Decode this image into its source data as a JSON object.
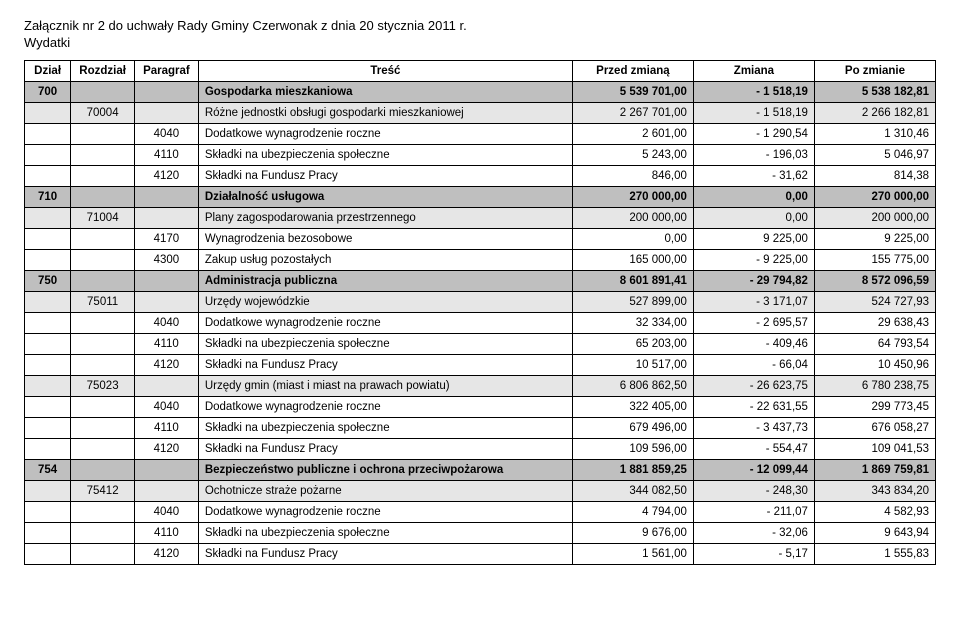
{
  "header": {
    "title": "Załącznik nr 2 do uchwały Rady Gminy Czerwonak z dnia 20 stycznia 2011 r.",
    "subtitle": "Wydatki"
  },
  "columns": {
    "dzial": "Dział",
    "rozdzial": "Rozdział",
    "paragraf": "Paragraf",
    "tresc": "Treść",
    "przed": "Przed zmianą",
    "zmiana": "Zmiana",
    "po": "Po zmianie"
  },
  "rows": [
    {
      "lvl": "dzial",
      "dzial": "700",
      "rozdz": "",
      "parag": "",
      "tresc": "Gospodarka mieszkaniowa",
      "p": "5 539 701,00",
      "z": "- 1 518,19",
      "po": "5 538 182,81"
    },
    {
      "lvl": "rozdz",
      "dzial": "",
      "rozdz": "70004",
      "parag": "",
      "tresc": "Różne jednostki obsługi gospodarki mieszkaniowej",
      "p": "2 267 701,00",
      "z": "- 1 518,19",
      "po": "2 266 182,81"
    },
    {
      "lvl": "parag",
      "dzial": "",
      "rozdz": "",
      "parag": "4040",
      "tresc": "Dodatkowe wynagrodzenie roczne",
      "p": "2 601,00",
      "z": "- 1 290,54",
      "po": "1 310,46"
    },
    {
      "lvl": "parag",
      "dzial": "",
      "rozdz": "",
      "parag": "4110",
      "tresc": "Składki na ubezpieczenia społeczne",
      "p": "5 243,00",
      "z": "- 196,03",
      "po": "5 046,97"
    },
    {
      "lvl": "parag",
      "dzial": "",
      "rozdz": "",
      "parag": "4120",
      "tresc": "Składki na Fundusz Pracy",
      "p": "846,00",
      "z": "- 31,62",
      "po": "814,38"
    },
    {
      "lvl": "dzial",
      "dzial": "710",
      "rozdz": "",
      "parag": "",
      "tresc": "Działalność usługowa",
      "p": "270 000,00",
      "z": "0,00",
      "po": "270 000,00"
    },
    {
      "lvl": "rozdz",
      "dzial": "",
      "rozdz": "71004",
      "parag": "",
      "tresc": "Plany zagospodarowania przestrzennego",
      "p": "200 000,00",
      "z": "0,00",
      "po": "200 000,00"
    },
    {
      "lvl": "parag",
      "dzial": "",
      "rozdz": "",
      "parag": "4170",
      "tresc": "Wynagrodzenia bezosobowe",
      "p": "0,00",
      "z": "9 225,00",
      "po": "9 225,00"
    },
    {
      "lvl": "parag",
      "dzial": "",
      "rozdz": "",
      "parag": "4300",
      "tresc": "Zakup usług pozostałych",
      "p": "165 000,00",
      "z": "- 9 225,00",
      "po": "155 775,00"
    },
    {
      "lvl": "dzial",
      "dzial": "750",
      "rozdz": "",
      "parag": "",
      "tresc": "Administracja publiczna",
      "p": "8 601 891,41",
      "z": "- 29 794,82",
      "po": "8 572 096,59"
    },
    {
      "lvl": "rozdz",
      "dzial": "",
      "rozdz": "75011",
      "parag": "",
      "tresc": "Urzędy wojewódzkie",
      "p": "527 899,00",
      "z": "- 3 171,07",
      "po": "524 727,93"
    },
    {
      "lvl": "parag",
      "dzial": "",
      "rozdz": "",
      "parag": "4040",
      "tresc": "Dodatkowe wynagrodzenie roczne",
      "p": "32 334,00",
      "z": "- 2 695,57",
      "po": "29 638,43"
    },
    {
      "lvl": "parag",
      "dzial": "",
      "rozdz": "",
      "parag": "4110",
      "tresc": "Składki na ubezpieczenia społeczne",
      "p": "65 203,00",
      "z": "- 409,46",
      "po": "64 793,54"
    },
    {
      "lvl": "parag",
      "dzial": "",
      "rozdz": "",
      "parag": "4120",
      "tresc": "Składki na Fundusz Pracy",
      "p": "10 517,00",
      "z": "- 66,04",
      "po": "10 450,96"
    },
    {
      "lvl": "rozdz",
      "dzial": "",
      "rozdz": "75023",
      "parag": "",
      "tresc": "Urzędy gmin (miast i miast na prawach powiatu)",
      "p": "6 806 862,50",
      "z": "- 26 623,75",
      "po": "6 780 238,75"
    },
    {
      "lvl": "parag",
      "dzial": "",
      "rozdz": "",
      "parag": "4040",
      "tresc": "Dodatkowe wynagrodzenie roczne",
      "p": "322 405,00",
      "z": "- 22 631,55",
      "po": "299 773,45"
    },
    {
      "lvl": "parag",
      "dzial": "",
      "rozdz": "",
      "parag": "4110",
      "tresc": "Składki na ubezpieczenia społeczne",
      "p": "679 496,00",
      "z": "- 3 437,73",
      "po": "676 058,27"
    },
    {
      "lvl": "parag",
      "dzial": "",
      "rozdz": "",
      "parag": "4120",
      "tresc": "Składki na Fundusz Pracy",
      "p": "109 596,00",
      "z": "- 554,47",
      "po": "109 041,53"
    },
    {
      "lvl": "dzial",
      "dzial": "754",
      "rozdz": "",
      "parag": "",
      "tresc": "Bezpieczeństwo publiczne i ochrona przeciwpożarowa",
      "p": "1 881 859,25",
      "z": "- 12 099,44",
      "po": "1 869 759,81"
    },
    {
      "lvl": "rozdz",
      "dzial": "",
      "rozdz": "75412",
      "parag": "",
      "tresc": "Ochotnicze straże pożarne",
      "p": "344 082,50",
      "z": "- 248,30",
      "po": "343 834,20"
    },
    {
      "lvl": "parag",
      "dzial": "",
      "rozdz": "",
      "parag": "4040",
      "tresc": "Dodatkowe wynagrodzenie roczne",
      "p": "4 794,00",
      "z": "- 211,07",
      "po": "4 582,93"
    },
    {
      "lvl": "parag",
      "dzial": "",
      "rozdz": "",
      "parag": "4110",
      "tresc": "Składki na ubezpieczenia społeczne",
      "p": "9 676,00",
      "z": "- 32,06",
      "po": "9 643,94"
    },
    {
      "lvl": "parag",
      "dzial": "",
      "rozdz": "",
      "parag": "4120",
      "tresc": "Składki na Fundusz Pracy",
      "p": "1 561,00",
      "z": "- 5,17",
      "po": "1 555,83"
    }
  ],
  "style": {
    "fill_dzial": "#bfbfbf",
    "fill_rozdz": "#e6e6e6",
    "fill_parag": "#ffffff",
    "border_color": "#000000",
    "font_family": "Segoe UI",
    "header_fontsize": 13,
    "table_fontsize": 11.5
  }
}
